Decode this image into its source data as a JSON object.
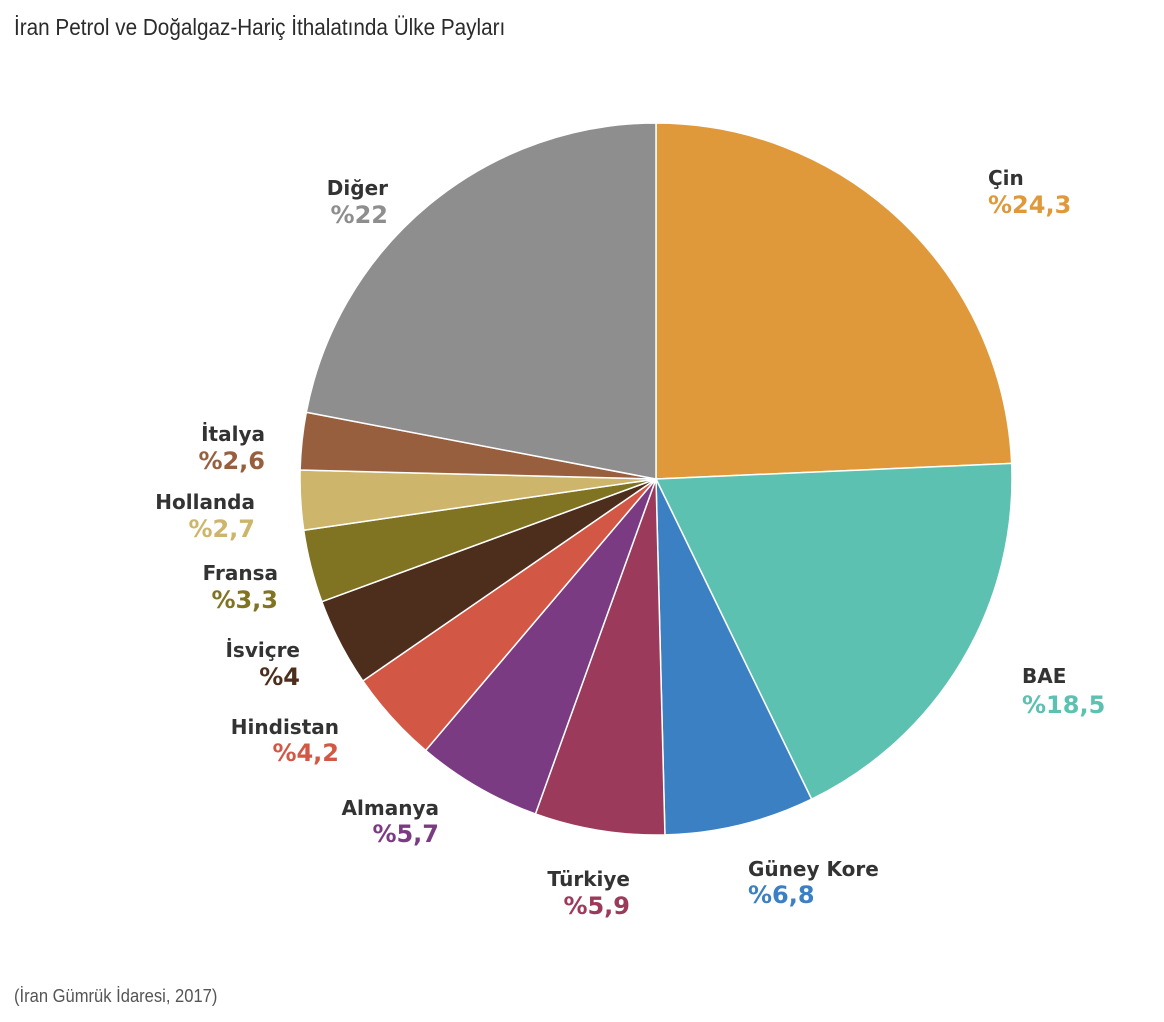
{
  "chart_data": {
    "type": "pie",
    "title": "İran Petrol ve Doğalgaz-Hariç İthalatında Ülke Payları",
    "source": "(İran Gümrük İdaresi, 2017)",
    "start_angle_deg": 0,
    "direction": "clockwise",
    "slices": [
      {
        "name": "Çin",
        "value": 24.3,
        "label": "%24,3",
        "color": "#E0993A"
      },
      {
        "name": "BAE",
        "value": 18.5,
        "label": "%18,5",
        "color": "#5CC1B0"
      },
      {
        "name": "Güney Kore",
        "value": 6.8,
        "label": "%6,8",
        "color": "#3B80C3"
      },
      {
        "name": "Türkiye",
        "value": 5.9,
        "label": "%5,9",
        "color": "#9B3A5A"
      },
      {
        "name": "Almanya",
        "value": 5.7,
        "label": "%5,7",
        "color": "#7B3B82"
      },
      {
        "name": "Hindistan",
        "value": 4.2,
        "label": "%4,2",
        "color": "#D35745"
      },
      {
        "name": "İsviçre",
        "value": 4,
        "label": "%4",
        "color": "#4D2E1D"
      },
      {
        "name": "Fransa",
        "value": 3.3,
        "label": "%3,3",
        "color": "#807322"
      },
      {
        "name": "Hollanda",
        "value": 2.7,
        "label": "%2,7",
        "color": "#CDB66B"
      },
      {
        "name": "İtalya",
        "value": 2.6,
        "label": "%2,6",
        "color": "#985F3F"
      },
      {
        "name": "Diğer",
        "value": 22,
        "label": "%22",
        "color": "#8F8E8E"
      }
    ]
  }
}
